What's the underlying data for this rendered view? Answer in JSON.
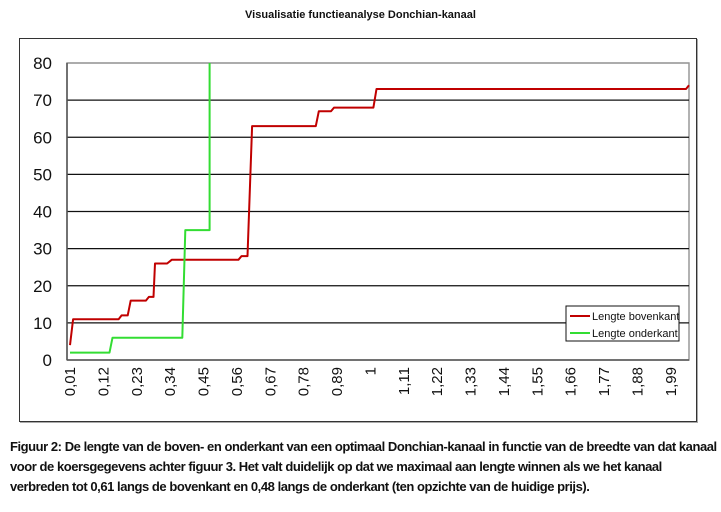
{
  "chart_data": {
    "type": "line",
    "title": "Visualisatie functieanalyse Donchian-kanaal",
    "xlabel": "",
    "ylabel": "",
    "xlim": [
      0,
      2.05
    ],
    "ylim": [
      0,
      80
    ],
    "yticks": [
      0,
      10,
      20,
      30,
      40,
      50,
      60,
      70,
      80
    ],
    "xtick_labels": [
      "0,01",
      "0,12",
      "0,23",
      "0,34",
      "0,45",
      "0,56",
      "0,67",
      "0,78",
      "0,89",
      "1",
      "1,11",
      "1,22",
      "1,33",
      "1,44",
      "1,55",
      "1,66",
      "1,77",
      "1,88",
      "1,99"
    ],
    "xtick_values": [
      0.01,
      0.12,
      0.23,
      0.34,
      0.45,
      0.56,
      0.67,
      0.78,
      0.89,
      1.0,
      1.11,
      1.22,
      1.33,
      1.44,
      1.55,
      1.66,
      1.77,
      1.88,
      1.99
    ],
    "grid": "horizontal",
    "legend_placement": "bottom-right",
    "series": [
      {
        "name": "Lengte bovenkant",
        "color": "#c00000",
        "points": [
          [
            0.01,
            4
          ],
          [
            0.02,
            11
          ],
          [
            0.17,
            11
          ],
          [
            0.18,
            12
          ],
          [
            0.2,
            12
          ],
          [
            0.21,
            16
          ],
          [
            0.26,
            16
          ],
          [
            0.27,
            17
          ],
          [
            0.285,
            17
          ],
          [
            0.29,
            26
          ],
          [
            0.33,
            26
          ],
          [
            0.345,
            27
          ],
          [
            0.565,
            27
          ],
          [
            0.575,
            28
          ],
          [
            0.595,
            28
          ],
          [
            0.61,
            63
          ],
          [
            0.82,
            63
          ],
          [
            0.83,
            67
          ],
          [
            0.87,
            67
          ],
          [
            0.88,
            68
          ],
          [
            1.01,
            68
          ],
          [
            1.02,
            73
          ],
          [
            2.04,
            73
          ],
          [
            2.05,
            74
          ]
        ]
      },
      {
        "name": "Lengte onderkant",
        "color": "#33dd33",
        "points": [
          [
            0.01,
            2
          ],
          [
            0.14,
            2
          ],
          [
            0.15,
            6
          ],
          [
            0.38,
            6
          ],
          [
            0.39,
            35
          ],
          [
            0.47,
            35
          ],
          [
            0.47,
            80
          ]
        ]
      }
    ]
  },
  "caption": "Figuur 2: De lengte van de boven- en onderkant van een optimaal Donchian-kanaal in functie van de breedte van dat kanaal voor de koersgegevens achter figuur 3. Het valt duidelijk op dat we maximaal aan lengte winnen als we het kanaal verbreden tot 0,61 langs de bovenkant en 0,48 langs de onderkant (ten opzichte van de huidige prijs)."
}
